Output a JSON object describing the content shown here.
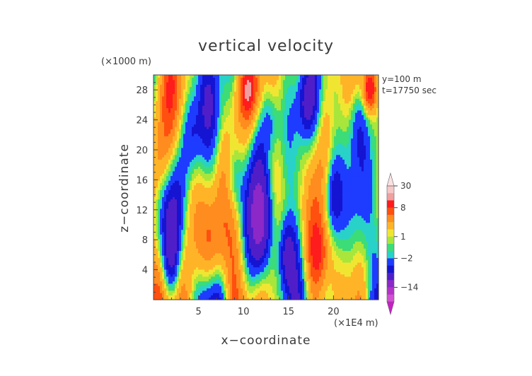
{
  "chart_data": {
    "type": "heatmap",
    "title": "vertical velocity",
    "xlabel": "x−coordinate",
    "ylabel": "z−coordinate",
    "x_unit": "(×1E4 m)",
    "y_unit": "(×1000 m)",
    "annotations": [
      "y=100 m",
      "t=17750 sec"
    ],
    "xlim": [
      0,
      25
    ],
    "ylim": [
      0,
      30
    ],
    "x_ticks": [
      "5",
      "10",
      "15",
      "20"
    ],
    "y_ticks": [
      "4",
      "8",
      "12",
      "16",
      "20",
      "24",
      "28"
    ],
    "x_tick_values": [
      5,
      10,
      15,
      20
    ],
    "y_tick_values": [
      4,
      8,
      12,
      16,
      20,
      24,
      28
    ],
    "colorbar": {
      "labels": [
        "30",
        "8",
        "1",
        "−2",
        "−14"
      ],
      "levels": [
        {
          "lo": 20,
          "hi": 30,
          "color": "#f6c8c8"
        },
        {
          "lo": 10,
          "hi": 20,
          "color": "#f0a0a0"
        },
        {
          "lo": 8,
          "hi": 10,
          "color": "#ff1c1c"
        },
        {
          "lo": 6,
          "hi": 8,
          "color": "#ff5010"
        },
        {
          "lo": 4,
          "hi": 6,
          "color": "#ff8c1e"
        },
        {
          "lo": 2,
          "hi": 4,
          "color": "#ffb428"
        },
        {
          "lo": 1,
          "hi": 2,
          "color": "#f0e632"
        },
        {
          "lo": 0,
          "hi": 1,
          "color": "#a8e63c"
        },
        {
          "lo": -1,
          "hi": 0,
          "color": "#3cdc78"
        },
        {
          "lo": -2,
          "hi": -1,
          "color": "#28d2c8"
        },
        {
          "lo": -4,
          "hi": -2,
          "color": "#1e3cff"
        },
        {
          "lo": -6,
          "hi": -4,
          "color": "#1414d2"
        },
        {
          "lo": -10,
          "hi": -6,
          "color": "#501ec8"
        },
        {
          "lo": -14,
          "hi": -10,
          "color": "#8c28c8"
        },
        {
          "lo": -20,
          "hi": -14,
          "color": "#b432c8"
        },
        {
          "lo": -30,
          "hi": -20,
          "color": "#d250d2"
        }
      ],
      "over_color": "#fbe2e2",
      "under_color": "#c81ec8"
    }
  }
}
